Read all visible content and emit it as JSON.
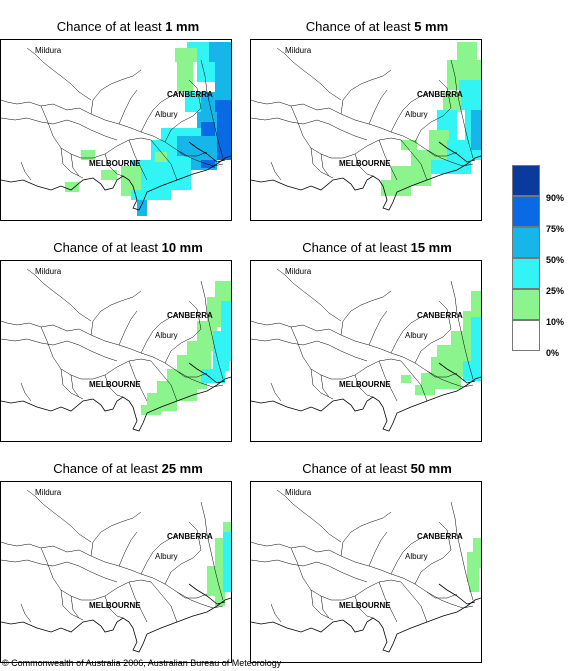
{
  "panels": [
    {
      "prefix": "Chance of at least",
      "amount": "1 mm"
    },
    {
      "prefix": "Chance of at least",
      "amount": "5 mm"
    },
    {
      "prefix": "Chance of at least",
      "amount": "10 mm"
    },
    {
      "prefix": "Chance of at least",
      "amount": "15 mm"
    },
    {
      "prefix": "Chance of at least",
      "amount": "25 mm"
    },
    {
      "prefix": "Chance of at least",
      "amount": "50 mm"
    }
  ],
  "cities": {
    "mildura": "Mildura",
    "canberra": "CANBERRA",
    "albury": "Albury",
    "melbourne": "MELBOURNE"
  },
  "legend": {
    "labels": [
      "90%",
      "75%",
      "50%",
      "25%",
      "10%",
      "0%"
    ],
    "colors": [
      "#0a3a9e",
      "#0a6ae6",
      "#17b6ea",
      "#33f4f4",
      "#8cf48c",
      "#ffffff"
    ]
  },
  "footer": "© Commonwealth of Australia 2006, Australian Bureau of Meteorology"
}
